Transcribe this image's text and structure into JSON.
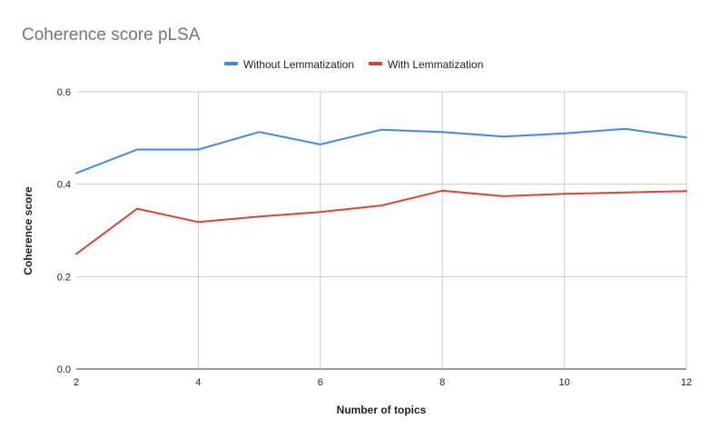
{
  "chart_data": {
    "type": "line",
    "title": "Coherence score pLSA",
    "xlabel": "Number of topics",
    "ylabel": "Coherence score",
    "x": [
      2,
      3,
      4,
      5,
      6,
      7,
      8,
      9,
      10,
      11,
      12
    ],
    "xlim": [
      2,
      12
    ],
    "ylim": [
      0,
      0.6
    ],
    "x_ticks": [
      "2",
      "4",
      "6",
      "8",
      "10",
      "12"
    ],
    "y_ticks": [
      "0.0",
      "0.2",
      "0.4",
      "0.6"
    ],
    "grid": true,
    "legend_position": "top",
    "series": [
      {
        "name": "Without Lemmatization",
        "color": "#4285f4",
        "values": [
          0.424,
          0.475,
          0.475,
          0.513,
          0.486,
          0.518,
          0.513,
          0.503,
          0.51,
          0.52,
          0.501
        ]
      },
      {
        "name": "With Lemmatization",
        "color": "#db4437",
        "values": [
          0.249,
          0.347,
          0.318,
          0.33,
          0.34,
          0.354,
          0.386,
          0.374,
          0.379,
          0.382,
          0.385
        ]
      }
    ]
  }
}
